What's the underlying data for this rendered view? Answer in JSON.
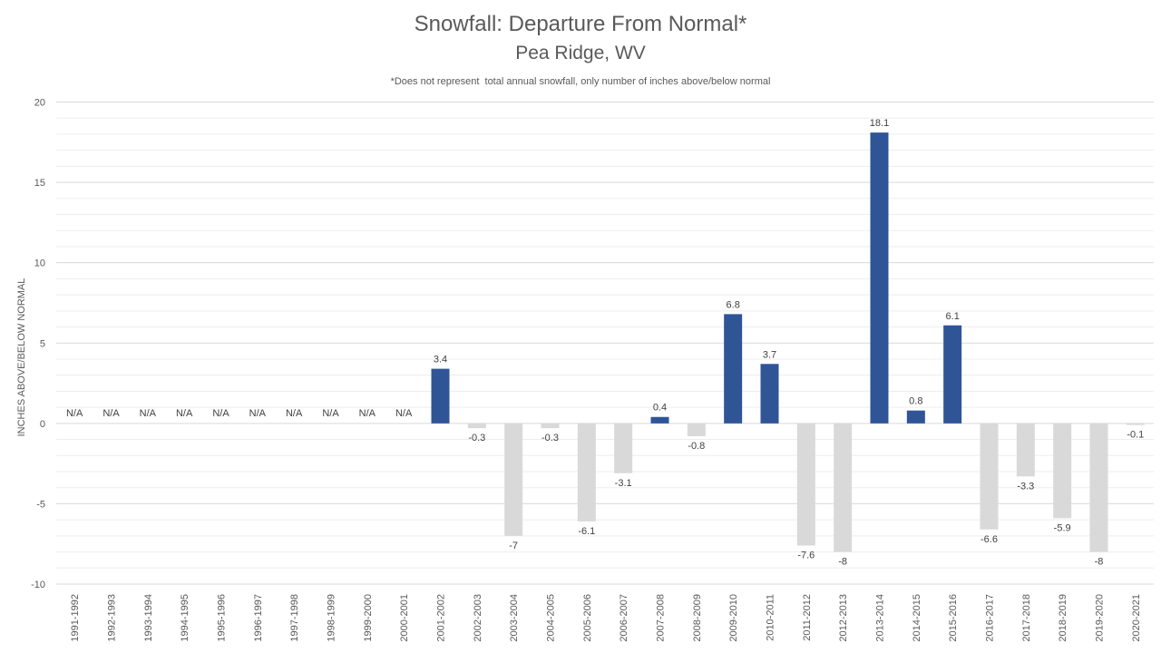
{
  "chart_data": {
    "type": "bar",
    "title": "Snowfall: Departure From Normal*",
    "subtitle": "Pea Ridge, WV",
    "note": "*Does not represent  total annual snowfall, only number of inches above/below normal",
    "ylabel": "INCHES ABOVE/BELOW NORMAL",
    "xlabel": "",
    "ylim": [
      -10,
      20
    ],
    "yticks": [
      -10,
      -5,
      0,
      5,
      10,
      15,
      20
    ],
    "grid": true,
    "legend": "none",
    "colors": {
      "positive": "#2F5597",
      "negative": "#D9D9D9",
      "grid_major": "#D9D9D9",
      "grid_minor": "#EDEDED",
      "text": "#595959"
    },
    "categories": [
      "1991-1992",
      "1992-1993",
      "1993-1994",
      "1994-1995",
      "1995-1996",
      "1996-1997",
      "1997-1998",
      "1998-1999",
      "1999-2000",
      "2000-2001",
      "2001-2002",
      "2002-2003",
      "2003-2004",
      "2004-2005",
      "2005-2006",
      "2006-2007",
      "2007-2008",
      "2008-2009",
      "2009-2010",
      "2010-2011",
      "2011-2012",
      "2012-2013",
      "2013-2014",
      "2014-2015",
      "2015-2016",
      "2016-2017",
      "2017-2018",
      "2018-2019",
      "2019-2020",
      "2020-2021"
    ],
    "values": [
      null,
      null,
      null,
      null,
      null,
      null,
      null,
      null,
      null,
      null,
      3.4,
      -0.3,
      -7,
      -0.3,
      -6.1,
      -3.1,
      0.4,
      -0.8,
      6.8,
      3.7,
      -7.6,
      -8,
      18.1,
      0.8,
      6.1,
      -6.6,
      -3.3,
      -5.9,
      -8,
      -0.1
    ],
    "labels": [
      "N/A",
      "N/A",
      "N/A",
      "N/A",
      "N/A",
      "N/A",
      "N/A",
      "N/A",
      "N/A",
      "N/A",
      "3.4",
      "-0.3",
      "-7",
      "-0.3",
      "-6.1",
      "-3.1",
      "0.4",
      "-0.8",
      "6.8",
      "3.7",
      "-7.6",
      "-8",
      "18.1",
      "0.8",
      "6.1",
      "-6.6",
      "-3.3",
      "-5.9",
      "-8",
      "-0.1"
    ]
  }
}
